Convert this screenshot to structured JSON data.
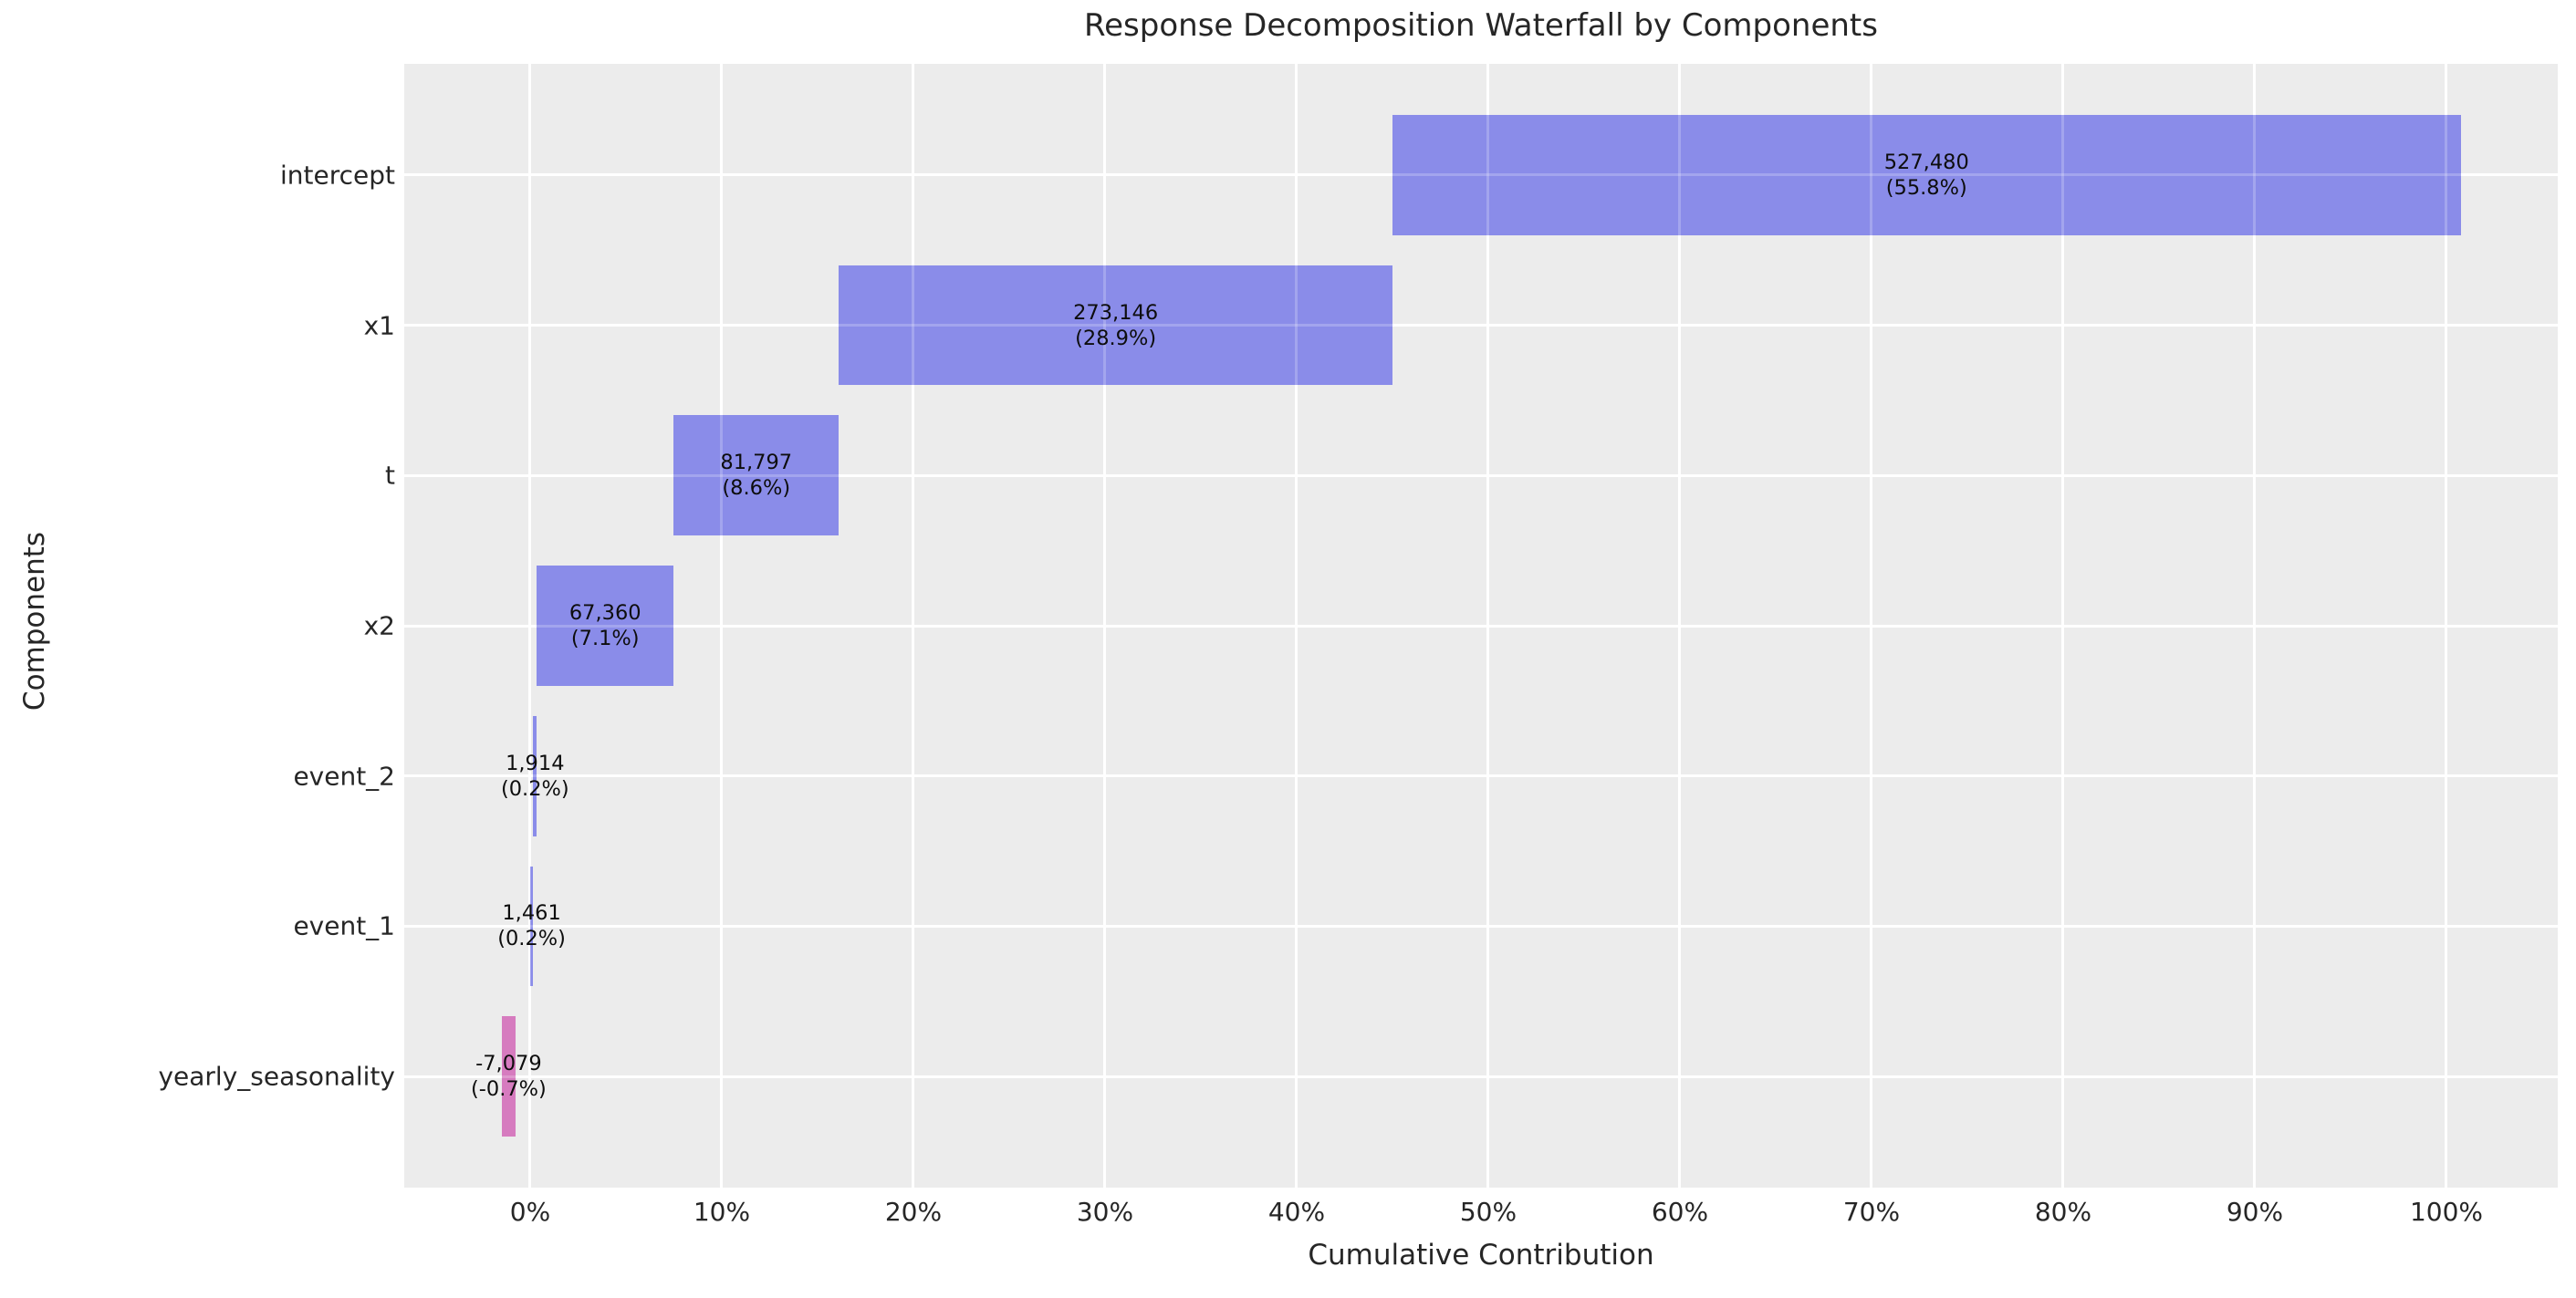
{
  "chart_data": {
    "type": "bar",
    "subtype": "horizontal-waterfall",
    "title": "Response Decomposition Waterfall by Components",
    "xlabel": "Cumulative Contribution",
    "ylabel": "Components",
    "grid": true,
    "xlim_pct": [
      -6.57,
      105.81
    ],
    "x_ticks": [
      {
        "label": "0%",
        "value": 0
      },
      {
        "label": "10%",
        "value": 10
      },
      {
        "label": "20%",
        "value": 20
      },
      {
        "label": "30%",
        "value": 30
      },
      {
        "label": "40%",
        "value": 40
      },
      {
        "label": "50%",
        "value": 50
      },
      {
        "label": "60%",
        "value": 60
      },
      {
        "label": "70%",
        "value": 70
      },
      {
        "label": "80%",
        "value": 80
      },
      {
        "label": "90%",
        "value": 90
      },
      {
        "label": "100%",
        "value": 100
      }
    ],
    "categories": [
      "intercept",
      "x1",
      "t",
      "x2",
      "event_2",
      "event_1",
      "yearly_seasonality"
    ],
    "bars": [
      {
        "name": "intercept",
        "value": 527480,
        "value_label": "527,480",
        "pct_label": "(55.8%)",
        "start_pct": 44.99,
        "end_pct": 100.75,
        "kind": "positive"
      },
      {
        "name": "x1",
        "value": 273146,
        "value_label": "273,146",
        "pct_label": "(28.9%)",
        "start_pct": 16.12,
        "end_pct": 44.99,
        "kind": "positive"
      },
      {
        "name": "t",
        "value": 81797,
        "value_label": "81,797",
        "pct_label": "(8.6%)",
        "start_pct": 7.48,
        "end_pct": 16.12,
        "kind": "positive"
      },
      {
        "name": "x2",
        "value": 67360,
        "value_label": "67,360",
        "pct_label": "(7.1%)",
        "start_pct": 0.356,
        "end_pct": 7.48,
        "kind": "positive"
      },
      {
        "name": "event_2",
        "value": 1914,
        "value_label": "1,914",
        "pct_label": "(0.2%)",
        "start_pct": 0.154,
        "end_pct": 0.356,
        "kind": "positive"
      },
      {
        "name": "event_1",
        "value": 1461,
        "value_label": "1,461",
        "pct_label": "(0.2%)",
        "start_pct": 0.0,
        "end_pct": 0.154,
        "kind": "positive"
      },
      {
        "name": "yearly_seasonality",
        "value": -7079,
        "value_label": "-7,079",
        "pct_label": "(-0.7%)",
        "start_pct": -1.496,
        "end_pct": -0.748,
        "kind": "negative"
      }
    ],
    "colors": {
      "positive_bar": "#8a8ce9",
      "negative_bar": "#d67bbf",
      "plot_background": "#ececec",
      "figure_background": "#ffffff",
      "gridline": "#ffffff",
      "tick_text": "#262626",
      "bar_label_text": "#0d0d0d"
    }
  }
}
